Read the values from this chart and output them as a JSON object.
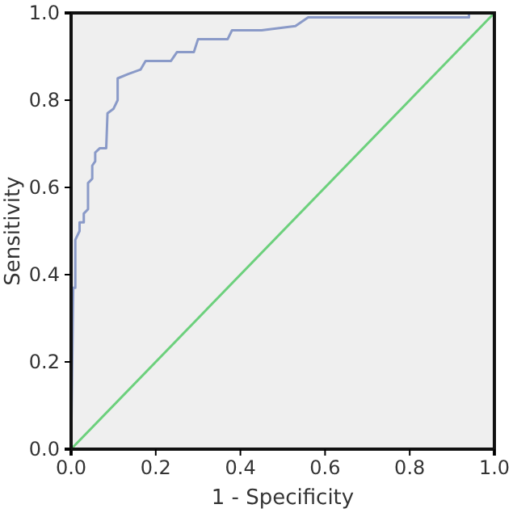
{
  "chart_data": {
    "type": "line",
    "xlabel": "1 - Specificity",
    "ylabel": "Sensitivity",
    "xlim": [
      0,
      1
    ],
    "ylim": [
      0,
      1
    ],
    "xticks": [
      {
        "value": 0,
        "label": "0.0"
      },
      {
        "value": 0.2,
        "label": "0.2"
      },
      {
        "value": 0.4,
        "label": "0.4"
      },
      {
        "value": 0.6,
        "label": "0.6"
      },
      {
        "value": 0.8,
        "label": "0.8"
      },
      {
        "value": 1,
        "label": "1.0"
      }
    ],
    "yticks": [
      {
        "value": 0,
        "label": "0.0"
      },
      {
        "value": 0.2,
        "label": "0.2"
      },
      {
        "value": 0.4,
        "label": "0.4"
      },
      {
        "value": 0.6,
        "label": "0.6"
      },
      {
        "value": 0.8,
        "label": "0.8"
      },
      {
        "value": 1,
        "label": "1.0"
      }
    ],
    "grid": false,
    "marker": "none",
    "line_style": "solid",
    "series": [
      {
        "color": "#8a9ac8",
        "x": [
          0,
          0.005,
          0.01,
          0.01,
          0.02,
          0.02,
          0.03,
          0.03,
          0.04,
          0.04,
          0.05,
          0.05,
          0.057,
          0.057,
          0.068,
          0.083,
          0.086,
          0.1,
          0.11,
          0.11,
          0.135,
          0.164,
          0.176,
          0.236,
          0.25,
          0.29,
          0.3,
          0.37,
          0.38,
          0.45,
          0.53,
          0.56,
          0.94,
          0.94
        ],
        "values": [
          0,
          0.37,
          0.37,
          0.48,
          0.5,
          0.52,
          0.52,
          0.54,
          0.55,
          0.61,
          0.62,
          0.65,
          0.66,
          0.68,
          0.69,
          0.69,
          0.77,
          0.78,
          0.8,
          0.85,
          0.86,
          0.87,
          0.89,
          0.89,
          0.91,
          0.91,
          0.94,
          0.94,
          0.96,
          0.96,
          0.97,
          0.99,
          0.99,
          1
        ]
      },
      {
        "color": "#6cd07c",
        "x": [
          0,
          1
        ],
        "values": [
          0,
          1
        ]
      }
    ]
  }
}
